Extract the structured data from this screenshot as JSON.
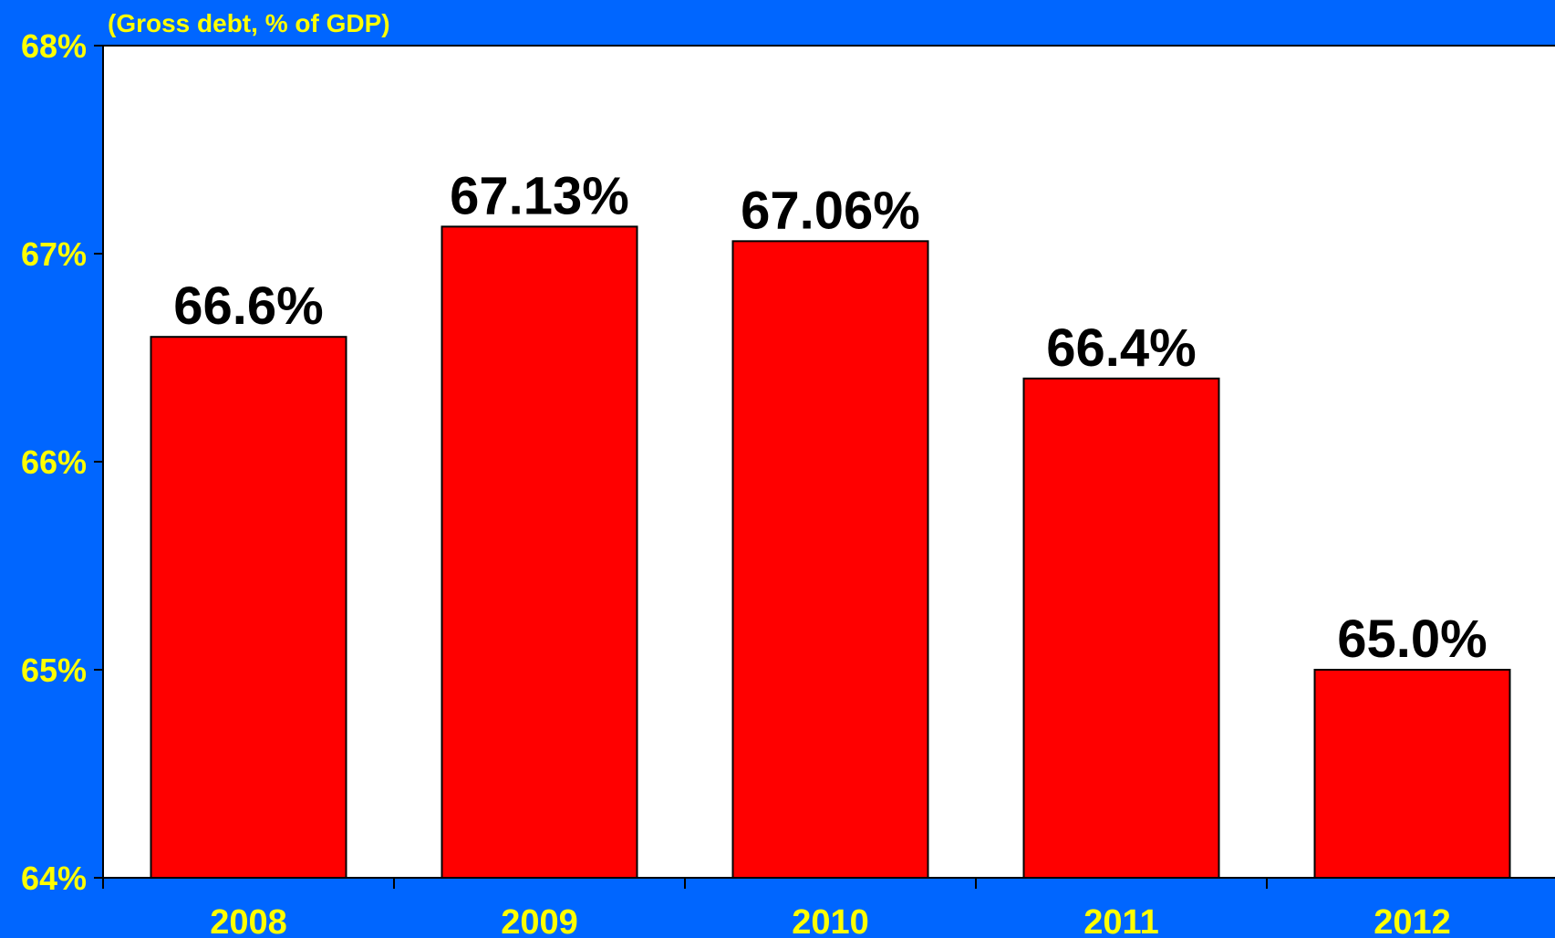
{
  "colors": {
    "background": "#0066ff",
    "plot_area": "#ffffff",
    "bar_fill": "#ff0000",
    "bar_stroke": "#000000",
    "axis_text": "#ffff00",
    "data_label": "#000000"
  },
  "chart_data": {
    "type": "bar",
    "subtitle": "(Gross debt, % of GDP)",
    "categories": [
      "2008",
      "2009",
      "2010",
      "2011",
      "2012"
    ],
    "values": [
      66.6,
      67.13,
      67.06,
      66.4,
      65.0
    ],
    "data_labels": [
      "66.6%",
      "67.13%",
      "67.06%",
      "66.4%",
      "65.0%"
    ],
    "ylim": [
      64,
      68
    ],
    "yticks": [
      64,
      65,
      66,
      67,
      68
    ],
    "ytick_labels": [
      "64%",
      "65%",
      "66%",
      "67%",
      "68%"
    ],
    "grid": false,
    "legend": "none"
  }
}
